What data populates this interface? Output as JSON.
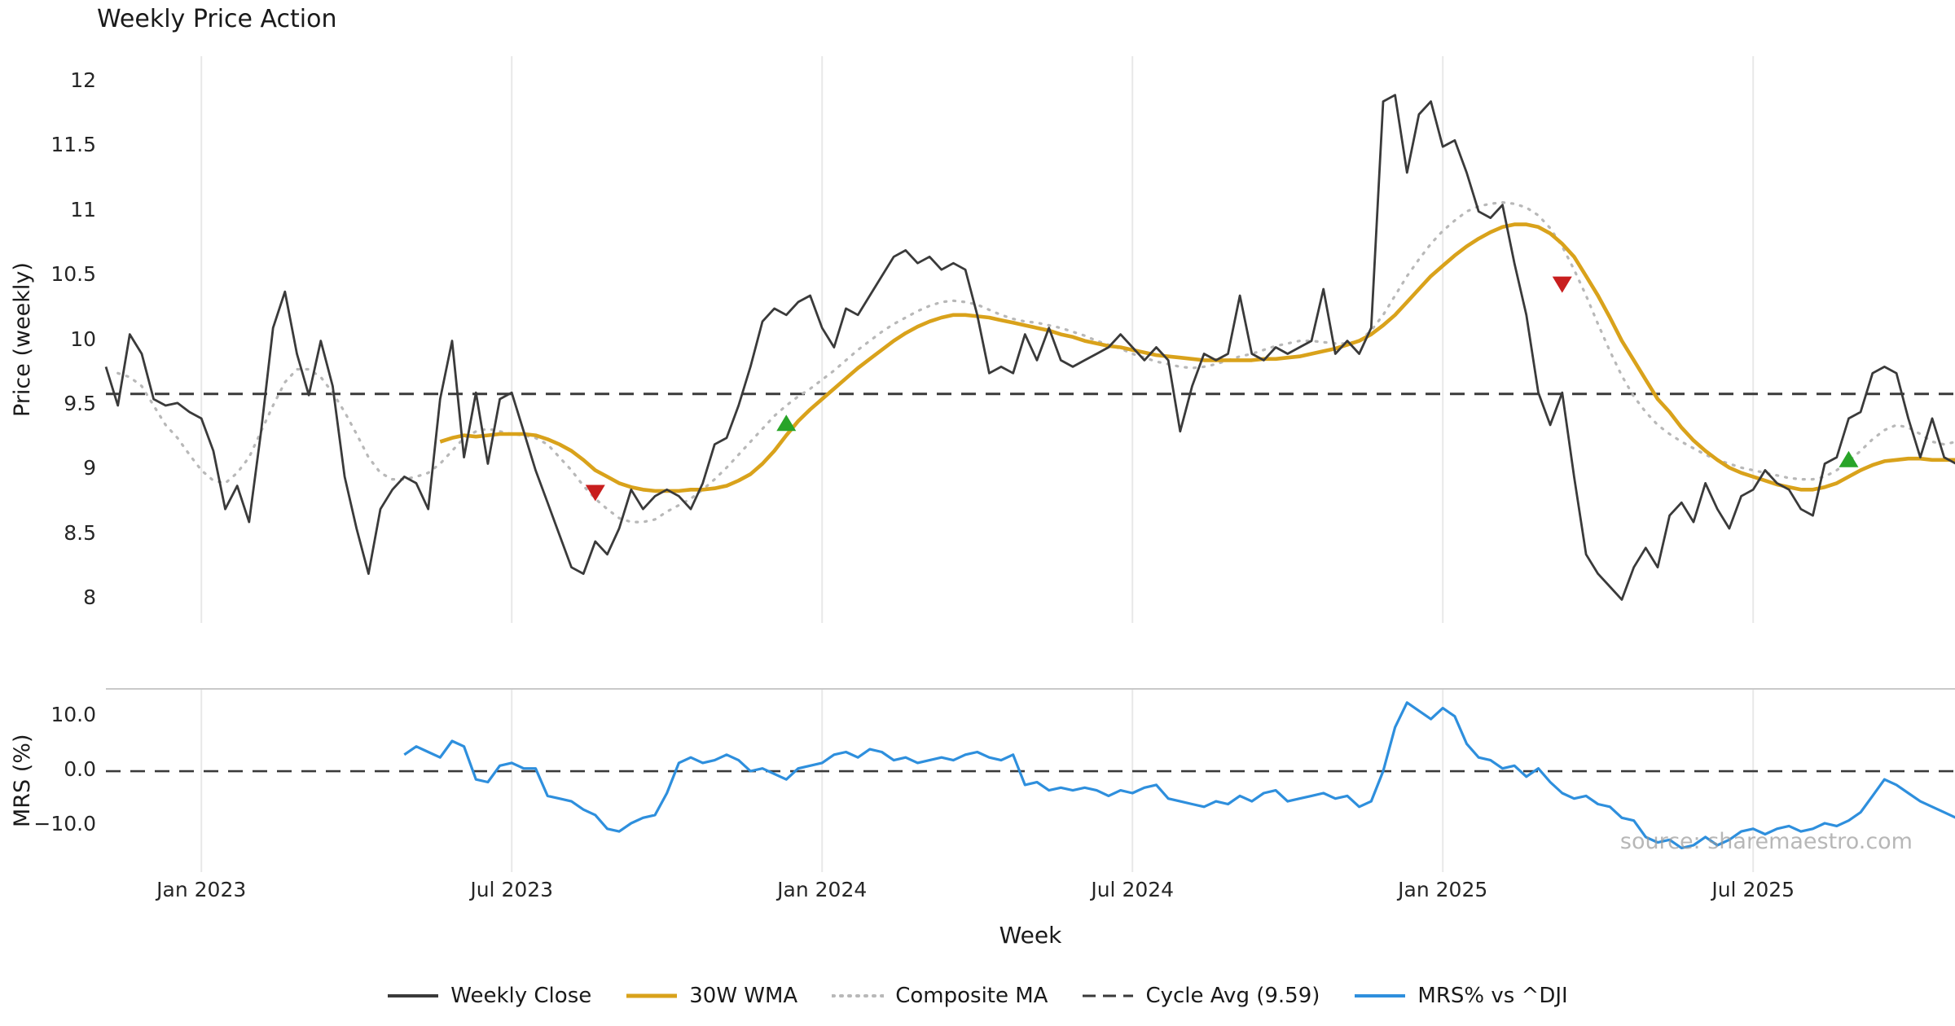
{
  "title": "Weekly Price Action",
  "watermark": "source: sharemaestro.com",
  "colors": {
    "close": "#3a3a3a",
    "wma": "#d9a21b",
    "composite": "#b8b8b8",
    "cycle": "#3a3a3a",
    "mrs": "#2e8fdd",
    "grid": "#e8e8e8",
    "spine": "#c9c9c9",
    "sell": "#c81e1e",
    "buy": "#28a428",
    "watermark": "#9a9a9a"
  },
  "price_panel": {
    "ylabel": "Price (weekly)",
    "yticks": [
      {
        "value": 12,
        "label": "12"
      },
      {
        "value": 11.5,
        "label": "11.5"
      },
      {
        "value": 11,
        "label": "11"
      },
      {
        "value": 10.5,
        "label": "10.5"
      },
      {
        "value": 10,
        "label": "10"
      },
      {
        "value": 9.5,
        "label": "9.5"
      },
      {
        "value": 9,
        "label": "9"
      },
      {
        "value": 8.5,
        "label": "8.5"
      },
      {
        "value": 8,
        "label": "8"
      }
    ]
  },
  "mrs_panel": {
    "ylabel": "MRS (%)",
    "yticks": [
      {
        "value": 10,
        "label": "10.0"
      },
      {
        "value": 0,
        "label": "0.0"
      },
      {
        "value": -10,
        "label": "−10.0"
      }
    ]
  },
  "xaxis": {
    "label": "Week",
    "ticks": [
      {
        "week": 8,
        "label": "Jan 2023"
      },
      {
        "week": 34,
        "label": "Jul 2023"
      },
      {
        "week": 60,
        "label": "Jan 2024"
      },
      {
        "week": 86,
        "label": "Jul 2024"
      },
      {
        "week": 112,
        "label": "Jan 2025"
      },
      {
        "week": 138,
        "label": "Jul 2025"
      }
    ]
  },
  "legend": [
    {
      "key": "weekly-close",
      "label": "Weekly Close",
      "color": "#3a3a3a",
      "style": "solid",
      "width": 4
    },
    {
      "key": "30w-wma",
      "label": "30W WMA",
      "color": "#d9a21b",
      "style": "solid",
      "width": 5
    },
    {
      "key": "composite-ma",
      "label": "Composite MA",
      "color": "#b8b8b8",
      "style": "dotted",
      "width": 4
    },
    {
      "key": "cycle-avg",
      "label": "Cycle Avg (9.59)",
      "color": "#3a3a3a",
      "style": "dashed",
      "width": 3
    },
    {
      "key": "mrs",
      "label": "MRS% vs ^DJI",
      "color": "#2e8fdd",
      "style": "solid",
      "width": 4
    }
  ],
  "chart_data": {
    "type": "line",
    "x_unit": "week_index (one point per week, week 0 ≈ mid-Nov 2022)",
    "x_tick_weeks": [
      8,
      34,
      60,
      86,
      112,
      138
    ],
    "x_tick_labels": [
      "Jan 2023",
      "Jul 2023",
      "Jan 2024",
      "Jul 2024",
      "Jan 2025",
      "Jul 2025"
    ],
    "panels": [
      {
        "name": "price",
        "ylabel": "Price (weekly)",
        "ylim": [
          7.82,
          12.2
        ],
        "reference_line": {
          "name": "Cycle Avg",
          "value": 9.59
        },
        "series": [
          {
            "name": "Weekly Close",
            "color": "#3a3a3a",
            "line_style": "solid",
            "start_week": 0,
            "values": [
              9.8,
              9.5,
              10.05,
              9.9,
              9.55,
              9.5,
              9.52,
              9.45,
              9.4,
              9.15,
              8.7,
              8.88,
              8.6,
              9.3,
              10.1,
              10.38,
              9.9,
              9.58,
              10.0,
              9.65,
              8.95,
              8.55,
              8.2,
              8.7,
              8.85,
              8.95,
              8.9,
              8.7,
              9.55,
              10.0,
              9.1,
              9.6,
              9.05,
              9.55,
              9.6,
              9.3,
              9.0,
              8.75,
              8.5,
              8.25,
              8.2,
              8.45,
              8.35,
              8.55,
              8.85,
              8.7,
              8.8,
              8.85,
              8.8,
              8.7,
              8.9,
              9.2,
              9.25,
              9.5,
              9.8,
              10.15,
              10.25,
              10.2,
              10.3,
              10.35,
              10.1,
              9.95,
              10.25,
              10.2,
              10.35,
              10.5,
              10.65,
              10.7,
              10.6,
              10.65,
              10.55,
              10.6,
              10.55,
              10.2,
              9.75,
              9.8,
              9.75,
              10.05,
              9.85,
              10.1,
              9.85,
              9.8,
              9.85,
              9.9,
              9.95,
              10.05,
              9.95,
              9.85,
              9.95,
              9.85,
              9.3,
              9.65,
              9.9,
              9.85,
              9.9,
              10.35,
              9.9,
              9.85,
              9.95,
              9.9,
              9.95,
              10.0,
              10.4,
              9.9,
              10.0,
              9.9,
              10.1,
              11.85,
              11.9,
              11.3,
              11.75,
              11.85,
              11.5,
              11.55,
              11.3,
              11.0,
              10.95,
              11.05,
              10.6,
              10.2,
              9.6,
              9.35,
              9.6,
              8.95,
              8.35,
              8.2,
              8.1,
              8.0,
              8.25,
              8.4,
              8.25,
              8.65,
              8.75,
              8.6,
              8.9,
              8.7,
              8.55,
              8.8,
              8.85,
              9.0,
              8.9,
              8.85,
              8.7,
              8.65,
              9.05,
              9.1,
              9.4,
              9.45,
              9.75,
              9.8,
              9.75,
              9.4,
              9.1,
              9.4,
              9.1,
              9.05
            ]
          },
          {
            "name": "30W WMA",
            "color": "#d9a21b",
            "line_style": "solid",
            "start_week": 28,
            "values": [
              9.22,
              9.25,
              9.27,
              9.26,
              9.27,
              9.28,
              9.28,
              9.28,
              9.27,
              9.24,
              9.2,
              9.15,
              9.08,
              9.0,
              8.95,
              8.9,
              8.87,
              8.85,
              8.84,
              8.84,
              8.84,
              8.85,
              8.85,
              8.86,
              8.88,
              8.92,
              8.97,
              9.05,
              9.15,
              9.27,
              9.38,
              9.47,
              9.55,
              9.63,
              9.71,
              9.79,
              9.86,
              9.93,
              10.0,
              10.06,
              10.11,
              10.15,
              10.18,
              10.2,
              10.2,
              10.19,
              10.18,
              10.16,
              10.14,
              10.12,
              10.1,
              10.08,
              10.05,
              10.03,
              10.0,
              9.98,
              9.96,
              9.95,
              9.93,
              9.91,
              9.89,
              9.88,
              9.87,
              9.86,
              9.85,
              9.85,
              9.85,
              9.85,
              9.85,
              9.86,
              9.86,
              9.87,
              9.88,
              9.9,
              9.92,
              9.94,
              9.97,
              10.0,
              10.05,
              10.12,
              10.2,
              10.3,
              10.4,
              10.5,
              10.58,
              10.66,
              10.73,
              10.79,
              10.84,
              10.88,
              10.9,
              10.9,
              10.88,
              10.83,
              10.75,
              10.65,
              10.5,
              10.35,
              10.18,
              10.0,
              9.85,
              9.7,
              9.55,
              9.45,
              9.33,
              9.23,
              9.15,
              9.08,
              9.02,
              8.98,
              8.95,
              8.92,
              8.89,
              8.87,
              8.85,
              8.85,
              8.87,
              8.9,
              8.95,
              9.0,
              9.04,
              9.07,
              9.08,
              9.09,
              9.09,
              9.08,
              9.08,
              9.08
            ]
          },
          {
            "name": "Composite MA",
            "color": "#b8b8b8",
            "line_style": "dotted",
            "start_week": 1,
            "values": [
              9.75,
              9.72,
              9.65,
              9.5,
              9.35,
              9.25,
              9.12,
              9.0,
              8.92,
              8.9,
              8.98,
              9.1,
              9.3,
              9.5,
              9.68,
              9.78,
              9.78,
              9.72,
              9.6,
              9.45,
              9.28,
              9.1,
              8.98,
              8.93,
              8.93,
              8.95,
              8.98,
              9.05,
              9.15,
              9.25,
              9.3,
              9.32,
              9.3,
              9.28,
              9.27,
              9.25,
              9.2,
              9.1,
              9.0,
              8.88,
              8.78,
              8.7,
              8.63,
              8.6,
              8.6,
              8.62,
              8.68,
              8.73,
              8.78,
              8.85,
              8.93,
              9.02,
              9.12,
              9.22,
              9.32,
              9.42,
              9.5,
              9.57,
              9.63,
              9.7,
              9.77,
              9.85,
              9.93,
              10.0,
              10.07,
              10.13,
              10.18,
              10.23,
              10.27,
              10.3,
              10.31,
              10.3,
              10.28,
              10.24,
              10.2,
              10.17,
              10.15,
              10.14,
              10.12,
              10.1,
              10.07,
              10.04,
              10.0,
              9.97,
              9.94,
              9.9,
              9.87,
              9.84,
              9.82,
              9.8,
              9.79,
              9.8,
              9.82,
              9.85,
              9.88,
              9.9,
              9.93,
              9.96,
              9.98,
              10.0,
              10.0,
              9.99,
              9.98,
              9.98,
              10.0,
              10.08,
              10.2,
              10.35,
              10.5,
              10.63,
              10.75,
              10.85,
              10.93,
              11.0,
              11.04,
              11.06,
              11.07,
              11.06,
              11.03,
              10.97,
              10.87,
              10.73,
              10.55,
              10.35,
              10.13,
              9.92,
              9.73,
              9.57,
              9.45,
              9.35,
              9.28,
              9.22,
              9.17,
              9.12,
              9.08,
              9.05,
              9.02,
              9.0,
              8.98,
              8.96,
              8.94,
              8.93,
              8.93,
              8.95,
              9.0,
              9.07,
              9.15,
              9.24,
              9.31,
              9.35,
              9.33,
              9.28,
              9.22,
              9.2,
              9.22
            ]
          }
        ],
        "markers": [
          {
            "type": "sell",
            "week": 41,
            "value": 8.83
          },
          {
            "type": "buy",
            "week": 57,
            "value": 9.36
          },
          {
            "type": "sell",
            "week": 122,
            "value": 10.44
          },
          {
            "type": "buy",
            "week": 146,
            "value": 9.08
          }
        ]
      },
      {
        "name": "mrs",
        "ylabel": "MRS (%)",
        "ylim": [
          -18.4,
          15
        ],
        "reference_line": {
          "name": "zero",
          "value": 0
        },
        "series": [
          {
            "name": "MRS% vs ^DJI",
            "color": "#2e8fdd",
            "line_style": "solid",
            "start_week": 25,
            "values": [
              3.0,
              4.5,
              3.5,
              2.5,
              5.5,
              4.5,
              -1.5,
              -2.0,
              1.0,
              1.5,
              0.5,
              0.5,
              -4.5,
              -5.0,
              -5.5,
              -7.0,
              -8.0,
              -10.5,
              -11.0,
              -9.5,
              -8.5,
              -8.0,
              -4.0,
              1.5,
              2.5,
              1.5,
              2.0,
              3.0,
              2.0,
              0.0,
              0.5,
              -0.5,
              -1.5,
              0.5,
              1.0,
              1.5,
              3.0,
              3.5,
              2.5,
              4.0,
              3.5,
              2.0,
              2.5,
              1.5,
              2.0,
              2.5,
              2.0,
              3.0,
              3.5,
              2.5,
              2.0,
              3.0,
              -2.5,
              -2.0,
              -3.5,
              -3.0,
              -3.5,
              -3.0,
              -3.5,
              -4.5,
              -3.5,
              -4.0,
              -3.0,
              -2.5,
              -5.0,
              -5.5,
              -6.0,
              -6.5,
              -5.5,
              -6.0,
              -4.5,
              -5.5,
              -4.0,
              -3.5,
              -5.5,
              -5.0,
              -4.5,
              -4.0,
              -5.0,
              -4.5,
              -6.5,
              -5.5,
              0.0,
              8.0,
              12.5,
              11.0,
              9.5,
              11.5,
              10.0,
              5.0,
              2.5,
              2.0,
              0.5,
              1.0,
              -1.0,
              0.5,
              -2.0,
              -4.0,
              -5.0,
              -4.5,
              -6.0,
              -6.5,
              -8.5,
              -9.0,
              -12.0,
              -13.0,
              -12.5,
              -14.0,
              -13.5,
              -12.0,
              -13.5,
              -12.5,
              -11.0,
              -10.5,
              -11.5,
              -10.5,
              -10.0,
              -11.0,
              -10.5,
              -9.5,
              -10.0,
              -9.0,
              -7.5,
              -4.5,
              -1.5,
              -2.5,
              -4.0,
              -5.5,
              -6.5,
              -7.5,
              -8.5
            ]
          }
        ]
      }
    ]
  }
}
